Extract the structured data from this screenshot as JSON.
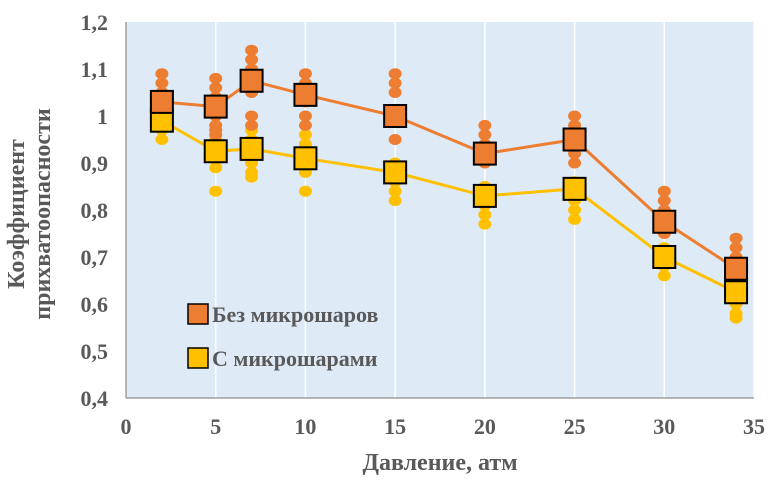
{
  "chart_data": {
    "type": "scatter",
    "title": "",
    "xlabel": "Давление, атм",
    "ylabel_lines": [
      "Коэффициент",
      "прихватоопасности"
    ],
    "xlim": [
      0,
      35
    ],
    "ylim": [
      0.4,
      1.2
    ],
    "x_ticks": [
      0,
      5,
      10,
      15,
      20,
      25,
      30,
      35
    ],
    "x_tick_labels": [
      "0",
      "5",
      "10",
      "15",
      "20",
      "25",
      "30",
      "35"
    ],
    "y_ticks": [
      0.4,
      0.5,
      0.6,
      0.7,
      0.8,
      0.9,
      1.0,
      1.1,
      1.2
    ],
    "y_tick_labels": [
      "0,4",
      "0,5",
      "0,6",
      "0,7",
      "0,8",
      "0,9",
      "1",
      "1,1",
      "1,2"
    ],
    "grid": "vertical",
    "legend_position": "bottom-left",
    "series": [
      {
        "name": "Без микрошаров",
        "color": "#ED7D31",
        "dot_color": "#ED7D31",
        "x": [
          2,
          5,
          7,
          10,
          15,
          20,
          25,
          30,
          34
        ],
        "mean": [
          1.03,
          1.02,
          1.075,
          1.045,
          1.0,
          0.92,
          0.95,
          0.775,
          0.675
        ],
        "samples": [
          [
            1.09,
            1.07,
            1.05,
            1.03,
            1.0
          ],
          [
            1.08,
            1.06,
            1.04,
            1.0,
            0.98,
            0.97,
            0.96
          ],
          [
            1.14,
            1.12,
            1.1,
            1.08,
            1.05,
            1.0,
            0.98
          ],
          [
            1.09,
            1.07,
            1.05,
            1.03,
            1.0,
            0.98
          ],
          [
            1.09,
            1.07,
            1.05,
            1.0,
            0.95
          ],
          [
            0.98,
            0.96,
            0.94,
            0.92,
            0.9
          ],
          [
            1.0,
            0.98,
            0.96,
            0.94,
            0.92,
            0.9
          ],
          [
            0.84,
            0.82,
            0.8,
            0.78,
            0.75
          ],
          [
            0.74,
            0.72,
            0.7,
            0.68,
            0.65
          ]
        ]
      },
      {
        "name": "С микрошарами",
        "color": "#FFC000",
        "dot_color": "#FFC000",
        "x": [
          2,
          5,
          7,
          10,
          15,
          20,
          25,
          30,
          34
        ],
        "mean": [
          0.99,
          0.925,
          0.93,
          0.91,
          0.88,
          0.83,
          0.845,
          0.7,
          0.625
        ],
        "samples": [
          [
            0.99,
            0.97,
            0.95
          ],
          [
            0.95,
            0.93,
            0.89,
            0.84
          ],
          [
            0.97,
            0.95,
            0.93,
            0.9,
            0.88,
            0.87
          ],
          [
            0.96,
            0.94,
            0.9,
            0.88,
            0.84
          ],
          [
            0.9,
            0.88,
            0.86,
            0.84,
            0.82
          ],
          [
            0.85,
            0.83,
            0.81,
            0.79,
            0.77
          ],
          [
            0.86,
            0.84,
            0.82,
            0.8,
            0.78
          ],
          [
            0.72,
            0.7,
            0.68,
            0.66
          ],
          [
            0.64,
            0.62,
            0.6,
            0.58,
            0.57
          ]
        ]
      }
    ]
  }
}
